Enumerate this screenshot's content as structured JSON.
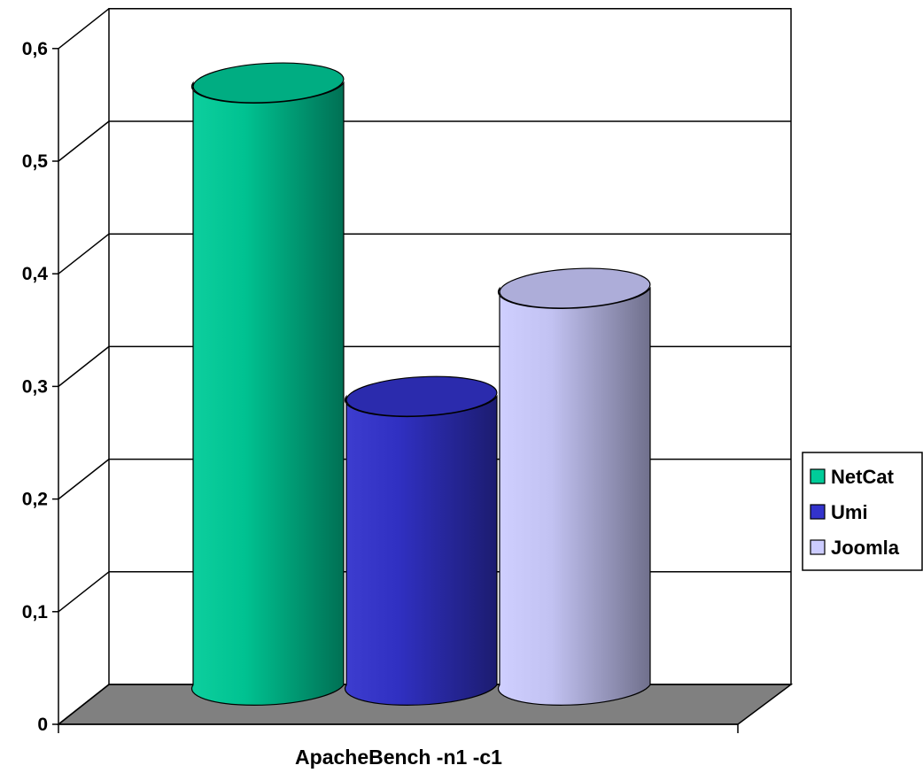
{
  "chart_data": {
    "type": "bar",
    "categories": [
      "ApacheBench -n1 -c1"
    ],
    "series": [
      {
        "name": "NetCat",
        "values": [
          0.52
        ],
        "color": "#00cc99"
      },
      {
        "name": "Umi",
        "values": [
          0.23
        ],
        "color": "#3333cc"
      },
      {
        "name": "Joomla",
        "values": [
          0.33
        ],
        "color": "#ccccff"
      }
    ],
    "title": "",
    "xlabel": "",
    "ylabel": "",
    "ylim": [
      0,
      0.6
    ],
    "yticks": [
      0,
      0.1,
      0.2,
      0.3,
      0.4,
      0.5,
      0.6
    ],
    "ytick_labels": [
      "0",
      "0,1",
      "0,2",
      "0,3",
      "0,4",
      "0,5",
      "0,6"
    ],
    "grid": true,
    "legend_position": "right",
    "style": "3d-cylinder",
    "floor_color": "#808080"
  }
}
